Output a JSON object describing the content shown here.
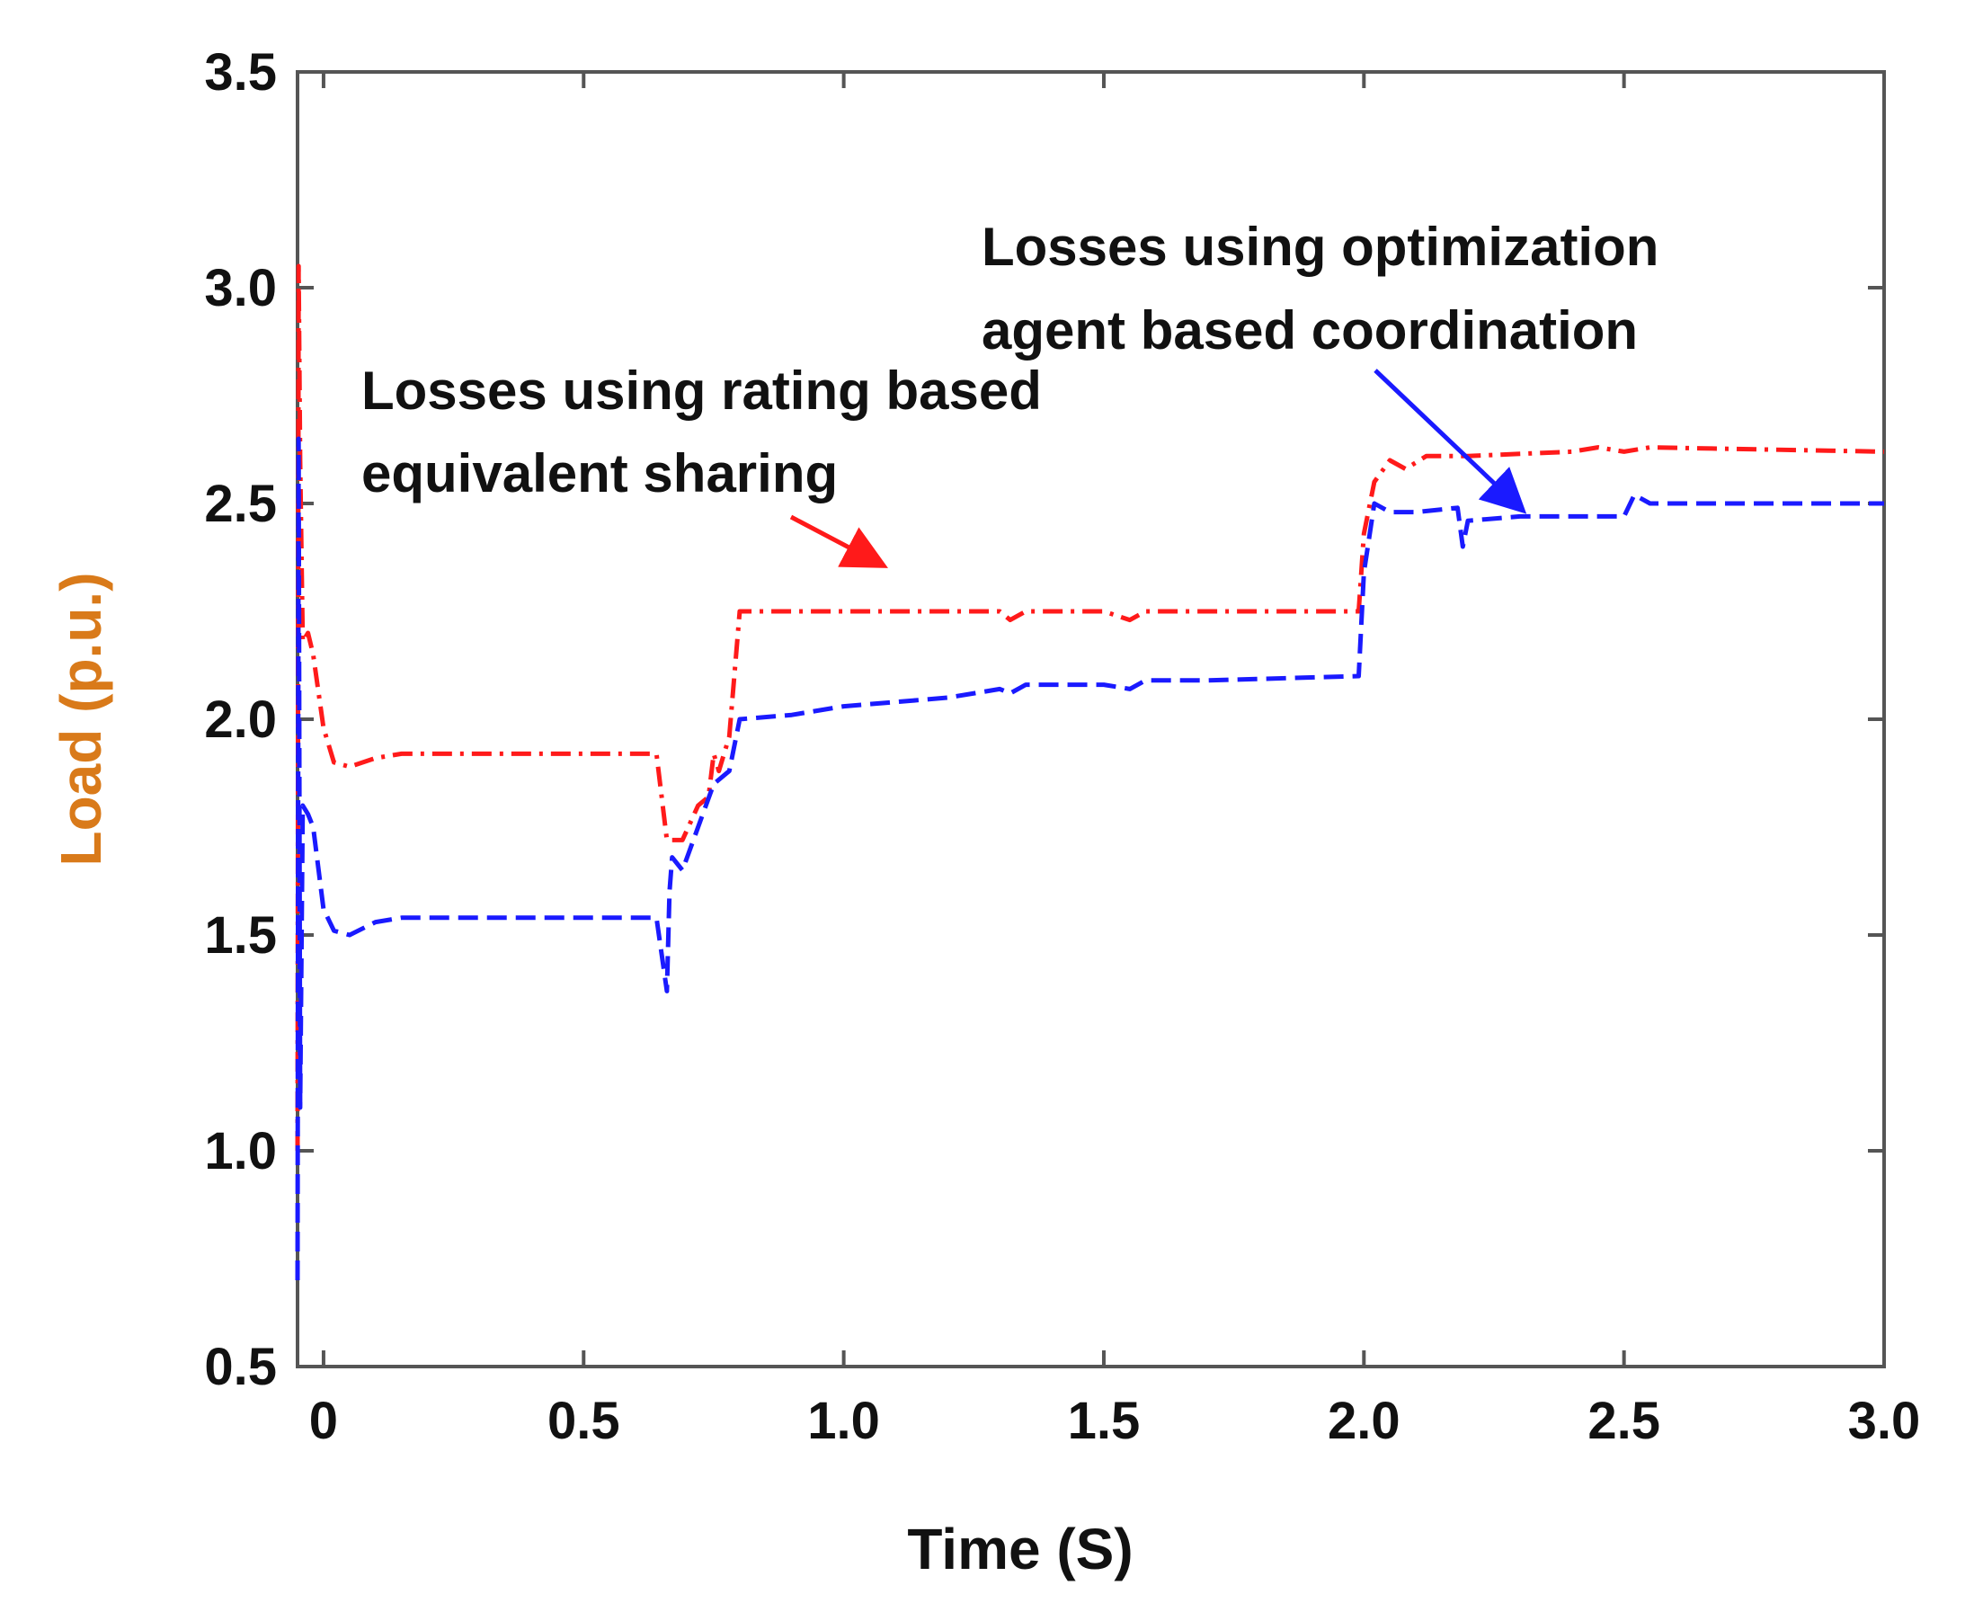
{
  "chart_data": {
    "type": "line",
    "title": "",
    "xlabel": "Time (S)",
    "ylabel": "Load (p.u.)",
    "xlim": [
      -0.05,
      3.0
    ],
    "ylim": [
      0.5,
      3.5
    ],
    "x_ticks": [
      {
        "value": 0.0,
        "label": "0"
      },
      {
        "value": 0.5,
        "label": "0.5"
      },
      {
        "value": 1.0,
        "label": "1.0"
      },
      {
        "value": 1.5,
        "label": "1.5"
      },
      {
        "value": 2.0,
        "label": "2.0"
      },
      {
        "value": 2.5,
        "label": "2.5"
      },
      {
        "value": 3.0,
        "label": "3.0"
      }
    ],
    "y_ticks": [
      {
        "value": 0.5,
        "label": "0.5"
      },
      {
        "value": 1.0,
        "label": "1.0"
      },
      {
        "value": 1.5,
        "label": "1.5"
      },
      {
        "value": 2.0,
        "label": "2.0"
      },
      {
        "value": 2.5,
        "label": "2.5"
      },
      {
        "value": 3.0,
        "label": "3.0"
      },
      {
        "value": 3.5,
        "label": "3.5"
      }
    ],
    "grid": false,
    "colors": {
      "rating_based": "#ff1a1a",
      "optimization_based": "#1a1aff",
      "secondary": "#22aa44",
      "ylabel": "#d97a1a",
      "axis": "#555555"
    },
    "series": [
      {
        "name": "rating_based",
        "style": "dash-dot",
        "color": "#ff1a1a",
        "x": [
          -0.05,
          -0.048,
          -0.045,
          -0.04,
          -0.03,
          -0.02,
          0.0,
          0.02,
          0.05,
          0.1,
          0.15,
          0.2,
          0.3,
          0.4,
          0.5,
          0.6,
          0.64,
          0.66,
          0.67,
          0.69,
          0.72,
          0.74,
          0.75,
          0.76,
          0.78,
          0.8,
          0.85,
          1.0,
          1.3,
          1.32,
          1.35,
          1.5,
          1.55,
          1.58,
          1.7,
          1.99,
          2.0,
          2.02,
          2.05,
          2.08,
          2.12,
          2.2,
          2.4,
          2.45,
          2.5,
          2.55,
          3.0
        ],
        "y": [
          1.0,
          3.05,
          2.6,
          2.18,
          2.2,
          2.15,
          1.98,
          1.9,
          1.89,
          1.91,
          1.92,
          1.92,
          1.92,
          1.92,
          1.92,
          1.92,
          1.92,
          1.72,
          1.72,
          1.72,
          1.8,
          1.82,
          1.92,
          1.88,
          1.96,
          2.25,
          2.25,
          2.25,
          2.25,
          2.23,
          2.25,
          2.25,
          2.23,
          2.25,
          2.25,
          2.25,
          2.43,
          2.55,
          2.6,
          2.58,
          2.61,
          2.61,
          2.62,
          2.63,
          2.62,
          2.63,
          2.62
        ]
      },
      {
        "name": "optimization_based",
        "style": "dashed",
        "color": "#1a1aff",
        "x": [
          -0.05,
          -0.048,
          -0.045,
          -0.04,
          -0.03,
          -0.02,
          0.0,
          0.02,
          0.05,
          0.1,
          0.15,
          0.2,
          0.4,
          0.6,
          0.64,
          0.66,
          0.665,
          0.67,
          0.69,
          0.72,
          0.75,
          0.78,
          0.8,
          0.9,
          1.0,
          1.2,
          1.3,
          1.32,
          1.35,
          1.5,
          1.55,
          1.58,
          1.7,
          1.99,
          2.0,
          2.02,
          2.05,
          2.1,
          2.18,
          2.19,
          2.2,
          2.3,
          2.45,
          2.5,
          2.52,
          2.55,
          3.0
        ],
        "y": [
          0.7,
          2.65,
          1.1,
          1.8,
          1.78,
          1.75,
          1.56,
          1.51,
          1.5,
          1.53,
          1.54,
          1.54,
          1.54,
          1.54,
          1.54,
          1.37,
          1.6,
          1.68,
          1.65,
          1.75,
          1.85,
          1.88,
          2.0,
          2.01,
          2.03,
          2.05,
          2.07,
          2.06,
          2.08,
          2.08,
          2.07,
          2.09,
          2.09,
          2.1,
          2.34,
          2.5,
          2.48,
          2.48,
          2.49,
          2.4,
          2.46,
          2.47,
          2.47,
          2.47,
          2.52,
          2.5,
          2.5
        ]
      }
    ],
    "annotations": [
      {
        "lines": [
          "Losses using rating based",
          "equivalent sharing"
        ],
        "arrow_target": {
          "x": 1.07,
          "y": 2.36
        }
      },
      {
        "lines": [
          "Losses using optimization",
          "agent based coordination"
        ],
        "arrow_target": {
          "x": 2.3,
          "y": 2.49
        }
      }
    ]
  }
}
